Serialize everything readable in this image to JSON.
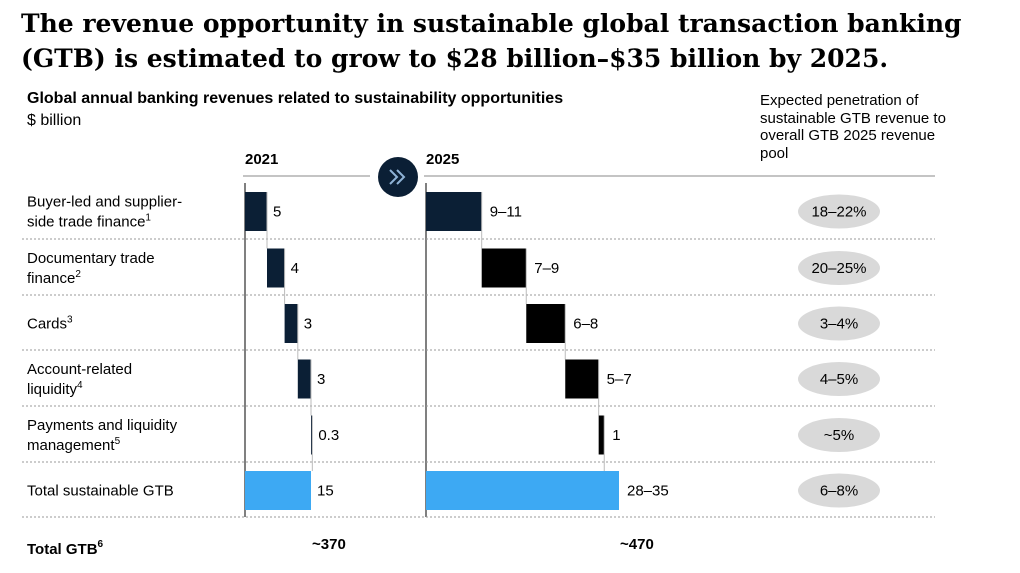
{
  "headline": "The revenue opportunity in sustainable global transaction banking (GTB) is estimated to grow to $28 billion–$35 billion by 2025.",
  "chart_title": "Global annual banking revenues related to sustainability opportunities",
  "unit": "$ billion",
  "penetration_header": "Expected penetration of sustainable GTB revenue to overall GTB 2025 revenue pool",
  "colors": {
    "navy": "#0b1f35",
    "black": "#000000",
    "blue": "#3da9f3",
    "pill": "#d9d9d9",
    "arrow_circle": "#0b1f35",
    "arrow": "#8fb3d6"
  },
  "chart_data": {
    "type": "bar",
    "subtype": "waterfall",
    "periods": [
      "2021",
      "2025"
    ],
    "arrow_icon": "double-chevron-right-icon",
    "categories": [
      {
        "name": "Buyer-led and supplier-side trade finance",
        "note": "1"
      },
      {
        "name": "Documentary trade finance",
        "note": "2"
      },
      {
        "name": "Cards",
        "note": "3"
      },
      {
        "name": "Account-related liquidity",
        "note": "4"
      },
      {
        "name": "Payments and liquidity management",
        "note": "5"
      }
    ],
    "series": [
      {
        "period": "2021",
        "values": [
          5,
          4,
          3,
          3,
          0.3
        ],
        "labels": [
          "5",
          "4",
          "3",
          "3",
          "0.3"
        ],
        "total": 15,
        "total_label": "15"
      },
      {
        "period": "2025",
        "low": [
          9,
          7,
          6,
          5,
          1
        ],
        "high": [
          11,
          9,
          8,
          7,
          1
        ],
        "labels": [
          "9–11",
          "7–9",
          "6–8",
          "5–7",
          "1"
        ],
        "total_low": 28,
        "total_high": 35,
        "total_label": "28–35"
      }
    ],
    "total_row_label": "Total sustainable GTB",
    "penetration": [
      "18–22%",
      "20–25%",
      "3–4%",
      "4–5%",
      "~5%",
      "6–8%"
    ],
    "total_gtb": {
      "label": "Total GTB",
      "note": "6",
      "values": [
        "~370",
        "~470"
      ]
    }
  }
}
